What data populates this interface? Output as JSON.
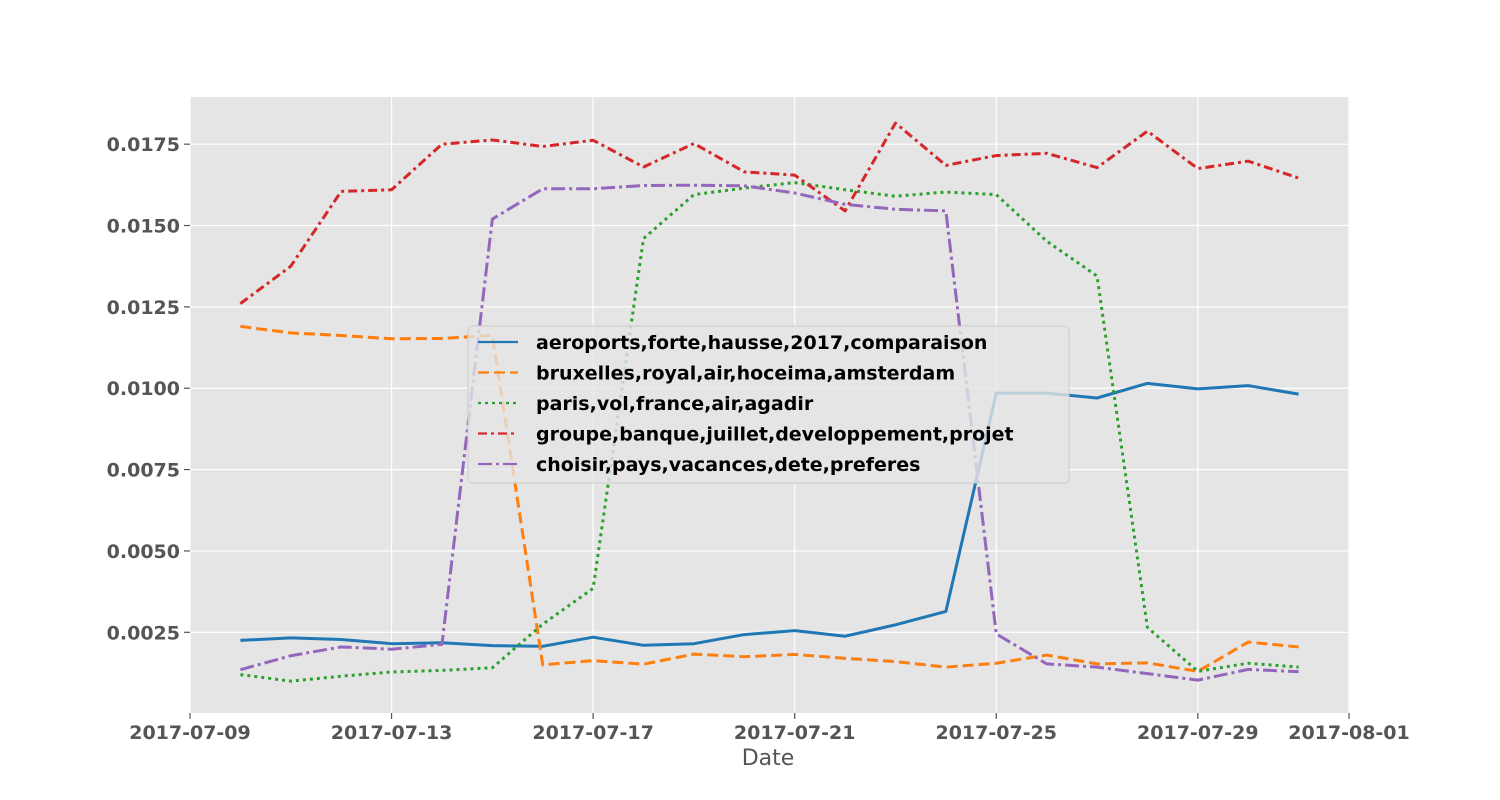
{
  "chart_data": {
    "type": "line",
    "xlabel": "Date",
    "ylabel": "",
    "title": "",
    "grid": true,
    "legend_position": "center",
    "xlim": [
      "2017-07-09",
      "2017-08-01"
    ],
    "ylim": [
      2e-05,
      0.01895
    ],
    "x_ticks": [
      "2017-07-09",
      "2017-07-13",
      "2017-07-17",
      "2017-07-21",
      "2017-07-25",
      "2017-07-29",
      "2017-08-01"
    ],
    "y_ticks": [
      "0.0025",
      "0.0050",
      "0.0075",
      "0.0100",
      "0.0125",
      "0.0150",
      "0.0175"
    ],
    "x": [
      "2017-07-10",
      "2017-07-11",
      "2017-07-12",
      "2017-07-13",
      "2017-07-14",
      "2017-07-15",
      "2017-07-16",
      "2017-07-17",
      "2017-07-18",
      "2017-07-19",
      "2017-07-20",
      "2017-07-21",
      "2017-07-22",
      "2017-07-23",
      "2017-07-24",
      "2017-07-25",
      "2017-07-26",
      "2017-07-27",
      "2017-07-28",
      "2017-07-29",
      "2017-07-30",
      "2017-07-31"
    ],
    "series": [
      {
        "name": "aeroports,forte,hausse,2017,comparaison",
        "color": "#1f77b4",
        "dash": "solid",
        "values": [
          0.00225,
          0.00233,
          0.00228,
          0.00215,
          0.00218,
          0.00209,
          0.00207,
          0.00235,
          0.0021,
          0.00215,
          0.00243,
          0.00255,
          0.00238,
          0.00273,
          0.00314,
          0.00985,
          0.00985,
          0.0097,
          0.01015,
          0.00998,
          0.01008,
          0.00982
        ]
      },
      {
        "name": "bruxelles,royal,air,hoceima,amsterdam",
        "color": "#ff7f0e",
        "dash": "dashed",
        "values": [
          0.0119,
          0.0117,
          0.01162,
          0.01152,
          0.01153,
          0.01163,
          0.0015,
          0.00163,
          0.00152,
          0.00183,
          0.00175,
          0.00182,
          0.0017,
          0.0016,
          0.00143,
          0.00155,
          0.0018,
          0.00153,
          0.00156,
          0.0013,
          0.0022,
          0.00205
        ]
      },
      {
        "name": "paris,vol,france,air,agadir",
        "color": "#2ca02c",
        "dash": "dotted",
        "values": [
          0.0012,
          0.001,
          0.00115,
          0.00128,
          0.00133,
          0.00141,
          0.00275,
          0.00385,
          0.0146,
          0.01595,
          0.01615,
          0.01632,
          0.0161,
          0.0159,
          0.01603,
          0.01595,
          0.01452,
          0.01345,
          0.00265,
          0.0013,
          0.00155,
          0.00143
        ]
      },
      {
        "name": "groupe,banque,juillet,developpement,projet",
        "color": "#d62728",
        "dash": "dashdot-dense",
        "values": [
          0.0126,
          0.01375,
          0.01605,
          0.0161,
          0.0175,
          0.01763,
          0.01743,
          0.01762,
          0.0168,
          0.01752,
          0.01665,
          0.01655,
          0.01545,
          0.01815,
          0.01685,
          0.01715,
          0.01722,
          0.01678,
          0.0179,
          0.01675,
          0.01698,
          0.01646
        ]
      },
      {
        "name": "choisir,pays,vacances,dete,preferes",
        "color": "#9467bd",
        "dash": "dashdot",
        "values": [
          0.00135,
          0.00178,
          0.00205,
          0.00198,
          0.00213,
          0.0152,
          0.01613,
          0.01613,
          0.01623,
          0.01624,
          0.01622,
          0.016,
          0.01565,
          0.0155,
          0.01545,
          0.00245,
          0.00153,
          0.00143,
          0.00123,
          0.00103,
          0.00136,
          0.00129
        ]
      }
    ]
  }
}
